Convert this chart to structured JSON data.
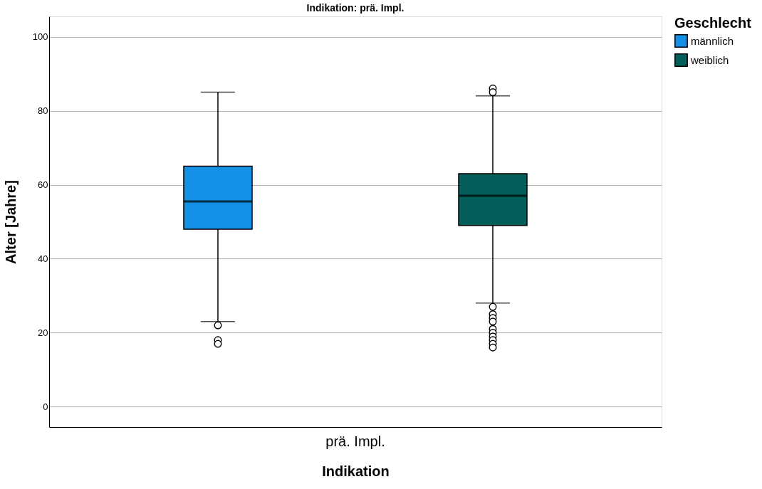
{
  "chart_data": {
    "type": "box",
    "title": "Indikation: prä. Impl.",
    "xlabel": "Indikation",
    "ylabel": "Alter [Jahre]",
    "legend_title": "Geschlecht",
    "categories": [
      "prä. Impl."
    ],
    "series": [
      {
        "name": "männlich",
        "color": "#1490e6",
        "boxes": [
          {
            "low": 23,
            "q1": 48,
            "median": 55.5,
            "q3": 65,
            "high": 85,
            "outliers": [
              22,
              18,
              17
            ]
          }
        ]
      },
      {
        "name": "weiblich",
        "color": "#045e5a",
        "boxes": [
          {
            "low": 28,
            "q1": 49,
            "median": 57,
            "q3": 63,
            "high": 84,
            "outliers": [
              86,
              85,
              27,
              25,
              24,
              23,
              21,
              20,
              19,
              18,
              17,
              16
            ]
          }
        ]
      }
    ],
    "ylim": [
      -5.5,
      105.5
    ],
    "yticks": [
      0,
      20,
      40,
      60,
      80,
      100
    ],
    "grid": "y",
    "legend": "top right"
  }
}
